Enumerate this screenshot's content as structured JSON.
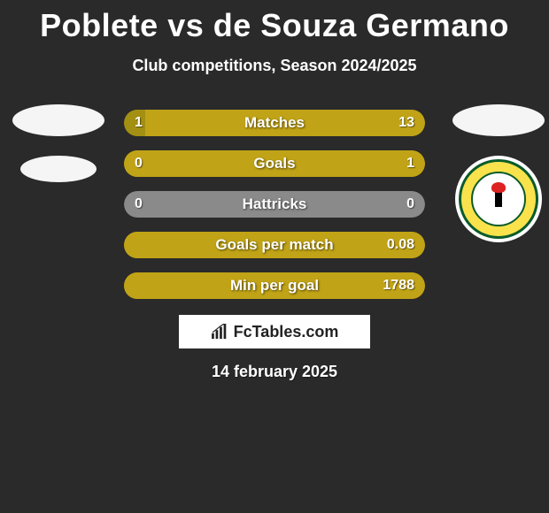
{
  "title": "Poblete vs de Souza Germano",
  "subtitle": "Club competitions, Season 2024/2025",
  "date": "14 february 2025",
  "brand": "FcTables.com",
  "colors": {
    "background": "#2a2a2a",
    "left_color": "#a38f12",
    "right_color": "#c0a316",
    "neutral_color": "#8a8a8a",
    "text": "#ffffff",
    "brand_bg": "#ffffff",
    "brand_text": "#222222"
  },
  "bars": [
    {
      "label": "Matches",
      "left": "1",
      "right": "13",
      "left_pct": 7,
      "right_pct": 93
    },
    {
      "label": "Goals",
      "left": "0",
      "right": "1",
      "left_pct": 0,
      "right_pct": 100
    },
    {
      "label": "Hattricks",
      "left": "0",
      "right": "0",
      "left_pct": 0,
      "right_pct": 0
    },
    {
      "label": "Goals per match",
      "left": "",
      "right": "0.08",
      "left_pct": 0,
      "right_pct": 100
    },
    {
      "label": "Min per goal",
      "left": "",
      "right": "1788",
      "left_pct": 0,
      "right_pct": 100
    }
  ]
}
